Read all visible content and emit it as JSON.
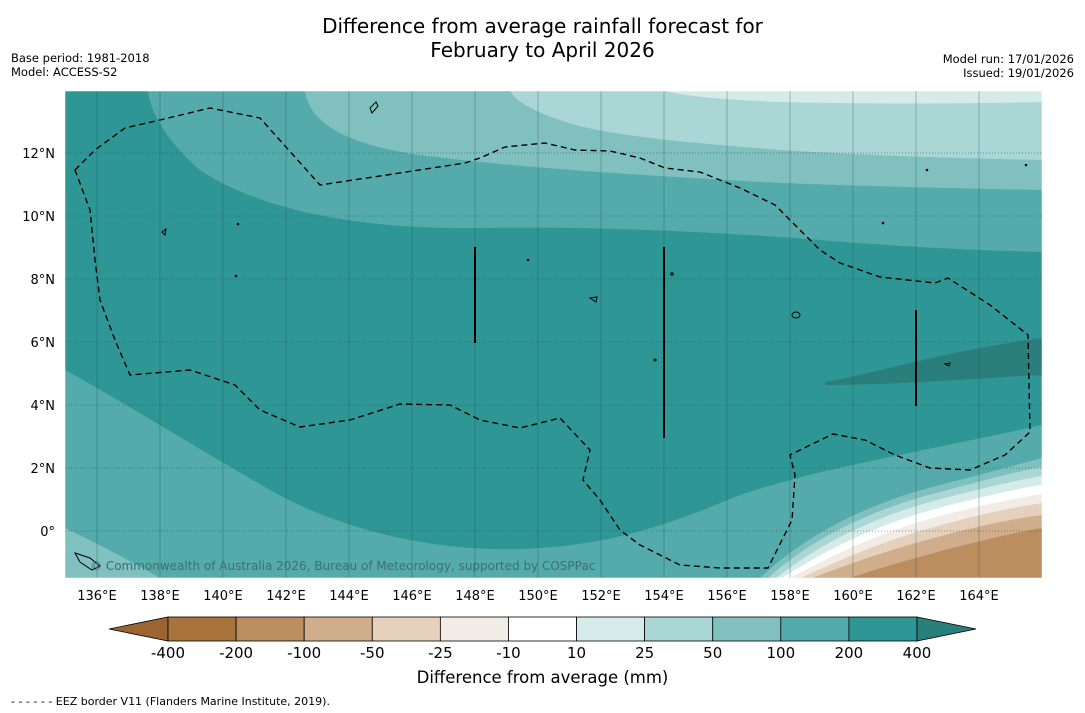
{
  "header": {
    "title_line1": "Difference from average rainfall forecast for",
    "title_line2": "February to April 2026",
    "base_period": "Base period: 1981-2018",
    "model": "Model: ACCESS-S2",
    "model_run": "Model run: 17/01/2026",
    "issued": "Issued: 19/01/2026"
  },
  "map": {
    "lon_ticks": [
      "136°E",
      "138°E",
      "140°E",
      "142°E",
      "144°E",
      "146°E",
      "148°E",
      "150°E",
      "152°E",
      "154°E",
      "156°E",
      "158°E",
      "160°E",
      "162°E",
      "164°E"
    ],
    "lat_ticks": [
      "12°N",
      "10°N",
      "8°N",
      "6°N",
      "4°N",
      "2°N",
      "0°"
    ],
    "copyright": "© Commonwealth of Australia 2026, Bureau of Meteorology, supported by COSPPac"
  },
  "colorbar": {
    "labels": [
      "-400",
      "-200",
      "-100",
      "-50",
      "-25",
      "-10",
      "10",
      "25",
      "50",
      "100",
      "200",
      "400"
    ],
    "colors": [
      "#a9733d",
      "#bc8d5f",
      "#d0ae8b",
      "#e5d1bb",
      "#f2ece7",
      "#ffffff",
      "#d5ebe9",
      "#aad6d5",
      "#80c1c0",
      "#55abab",
      "#2e9795"
    ],
    "extend_low_color": "#9b6431",
    "extend_high_color": "#2a7f7c",
    "title": "Difference from average (mm)"
  },
  "footnote": "- -  - -  - - EEZ border V11 (Flanders Marine Institute, 2019)."
}
